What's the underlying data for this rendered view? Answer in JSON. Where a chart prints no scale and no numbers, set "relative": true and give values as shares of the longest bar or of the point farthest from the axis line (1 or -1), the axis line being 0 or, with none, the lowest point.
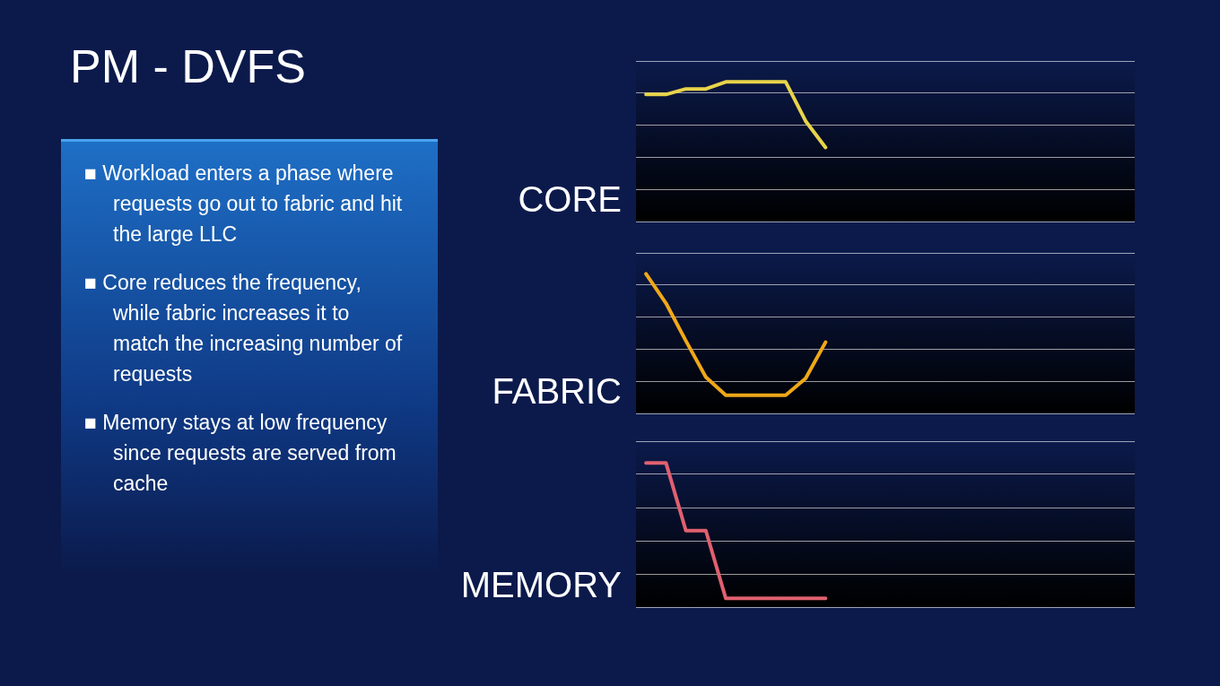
{
  "chart_data": [
    {
      "type": "other",
      "title": "PM - DVFS",
      "annotations": [
        "■ Workload enters a phase where requests go out to fabric and hit the large LLC",
        "■ Core reduces the frequency, while fabric increases it to match the increasing number of requests",
        "■ Memory stays at low frequency since requests are served from cache"
      ]
    },
    {
      "type": "line",
      "ylabel": "CORE",
      "relative": true,
      "grid": "y",
      "marker": "none",
      "color": "#e8d44a",
      "categories": [
        null,
        null,
        null,
        null,
        null,
        null,
        null,
        null,
        null,
        null,
        null,
        null,
        null,
        null,
        null,
        null,
        null,
        null,
        null,
        null,
        null,
        null,
        null,
        null,
        null
      ],
      "values": [
        0.91,
        0.91,
        0.95,
        0.95,
        1,
        1,
        1,
        1,
        0.72,
        0.53,
        null,
        null,
        null,
        null,
        null,
        null,
        null,
        null,
        null,
        null,
        null,
        null,
        null,
        null,
        null
      ]
    },
    {
      "type": "line",
      "ylabel": "FABRIC",
      "relative": true,
      "grid": "y",
      "marker": "none",
      "color": "#f0a818",
      "categories": [
        null,
        null,
        null,
        null,
        null,
        null,
        null,
        null,
        null,
        null,
        null,
        null,
        null,
        null,
        null,
        null,
        null,
        null,
        null,
        null,
        null,
        null,
        null,
        null,
        null
      ],
      "values": [
        1,
        0.79,
        0.52,
        0.26,
        0.13,
        0.13,
        0.13,
        0.13,
        0.25,
        0.51,
        null,
        null,
        null,
        null,
        null,
        null,
        null,
        null,
        null,
        null,
        null,
        null,
        null,
        null,
        null
      ]
    },
    {
      "type": "line",
      "ylabel": "MEMORY",
      "relative": true,
      "grid": "y",
      "marker": "none",
      "color": "#e06070",
      "categories": [
        null,
        null,
        null,
        null,
        null,
        null,
        null,
        null,
        null,
        null,
        null,
        null,
        null,
        null,
        null,
        null,
        null,
        null,
        null,
        null,
        null,
        null,
        null,
        null,
        null
      ],
      "values": [
        1,
        1,
        0.53,
        0.53,
        0.06,
        0.06,
        0.06,
        0.06,
        0.06,
        0.06,
        null,
        null,
        null,
        null,
        null,
        null,
        null,
        null,
        null,
        null,
        null,
        null,
        null,
        null,
        null
      ]
    }
  ]
}
